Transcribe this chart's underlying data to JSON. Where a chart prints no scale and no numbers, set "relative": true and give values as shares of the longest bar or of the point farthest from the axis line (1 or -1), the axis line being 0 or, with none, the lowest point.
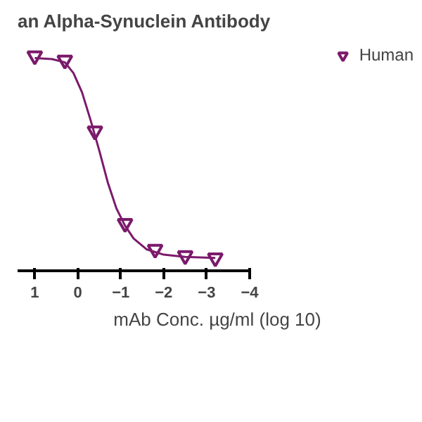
{
  "chart_data": {
    "type": "scatter",
    "title": "an Alpha-Synuclein Antibody",
    "xlabel": "mAb Conc. µg/ml (log 10)",
    "relative": true,
    "xlim": [
      1.4,
      -4
    ],
    "xticks": [
      1,
      0,
      -1,
      -2,
      -3,
      -4
    ],
    "marker": "triangle",
    "grid": false,
    "legend": "top right",
    "series": [
      {
        "name": "Human",
        "color": "#7b1a6b",
        "x": [
          1,
          0.3,
          -0.4,
          -1.1,
          -1.8,
          -2.5,
          -3.2
        ],
        "values": [
          1,
          0.98,
          0.65,
          0.22,
          0.1,
          0.07,
          0.06
        ]
      },
      {
        "type": "line",
        "color": "#7b1a6b",
        "marker": "none",
        "x": [
          1,
          0.6,
          0.3,
          0.1,
          -0.1,
          -0.3,
          -0.5,
          -0.7,
          -0.9,
          -1.1,
          -1.3,
          -1.6,
          -2,
          -2.5,
          -3.2
        ],
        "values": [
          0.99,
          0.985,
          0.97,
          0.92,
          0.83,
          0.7,
          0.56,
          0.41,
          0.29,
          0.21,
          0.15,
          0.1,
          0.075,
          0.065,
          0.06
        ]
      }
    ]
  }
}
